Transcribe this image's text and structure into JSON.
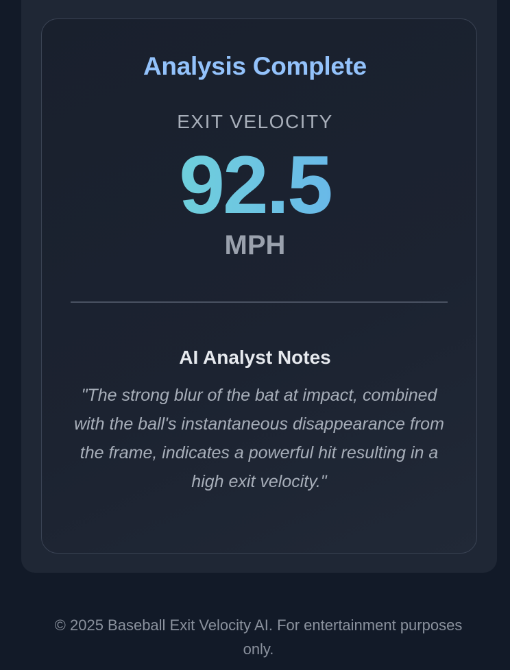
{
  "result": {
    "title": "Analysis Complete",
    "metric_label": "EXIT VELOCITY",
    "metric_value": "92.5",
    "metric_unit": "MPH",
    "notes_heading": "AI Analyst Notes",
    "notes_text": "\"The strong blur of the bat at impact, combined with the ball's instantaneous disappearance from the frame, indicates a powerful hit resulting in a high exit velocity.\""
  },
  "footer": {
    "text": "© 2025 Baseball Exit Velocity AI. For entertainment purposes only."
  },
  "colors": {
    "title": "#93c2fb",
    "value_gradient_start": "#6ee3c9",
    "value_gradient_end": "#5f9cf6",
    "background": "#121a28",
    "panel": "#1f2735"
  }
}
